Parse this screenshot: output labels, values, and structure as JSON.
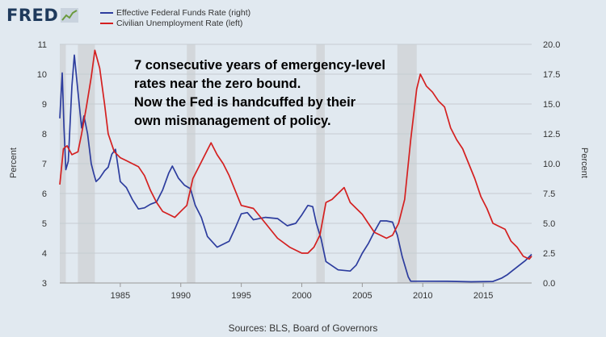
{
  "logo": {
    "text": "FRED",
    "icon": "chart-line-icon"
  },
  "annotation": {
    "lines": [
      "7 consecutive years of emergency-level",
      "rates near the zero bound.",
      "Now the Fed is handcuffed by their",
      "own mismanagement of policy."
    ]
  },
  "source": "Sources: BLS, Board of Governors",
  "chart_data": {
    "type": "line",
    "title": "",
    "xlabel": "",
    "ylabel_left": "Percent",
    "ylabel_right": "Percent",
    "xlim": [
      1980,
      2019
    ],
    "ylim_left": [
      3,
      11
    ],
    "ylim_right": [
      0,
      20
    ],
    "x_ticks": [
      1985,
      1990,
      1995,
      2000,
      2005,
      2010,
      2015
    ],
    "y_ticks_left": [
      "3",
      "4",
      "5",
      "6",
      "7",
      "8",
      "9",
      "10",
      "11"
    ],
    "y_ticks_right": [
      "0.0",
      "2.5",
      "5.0",
      "7.5",
      "10.0",
      "12.5",
      "15.0",
      "17.5",
      "20.0"
    ],
    "grid": true,
    "recessions": [
      [
        1980.0,
        1980.5
      ],
      [
        1981.5,
        1982.9
      ],
      [
        1990.5,
        1991.2
      ],
      [
        2001.2,
        2001.9
      ],
      [
        2007.9,
        2009.5
      ]
    ],
    "colors": {
      "funds": "#2d3d9e",
      "unemployment": "#d42020",
      "recession": "#d3d7db",
      "grid": "#c6ccd2"
    },
    "series": [
      {
        "name": "Effective Federal Funds Rate (right)",
        "axis": "right",
        "color": "#2d3d9e",
        "x": [
          1980.0,
          1980.2,
          1980.35,
          1980.5,
          1980.7,
          1981.0,
          1981.2,
          1981.5,
          1981.8,
          1982.0,
          1982.3,
          1982.6,
          1982.8,
          1983.0,
          1983.3,
          1983.7,
          1984.0,
          1984.3,
          1984.6,
          1985.0,
          1985.5,
          1986.0,
          1986.5,
          1987.0,
          1987.5,
          1988.0,
          1988.5,
          1989.0,
          1989.3,
          1989.8,
          1990.3,
          1990.8,
          1991.2,
          1991.7,
          1992.2,
          1993.0,
          1994.0,
          1994.5,
          1995.0,
          1995.5,
          1996.0,
          1997.0,
          1998.0,
          1998.8,
          1999.5,
          2000.0,
          2000.5,
          2000.9,
          2001.2,
          2001.6,
          2002.0,
          2003.0,
          2004.0,
          2004.5,
          2005.0,
          2005.5,
          2006.0,
          2006.5,
          2007.0,
          2007.5,
          2007.9,
          2008.3,
          2008.8,
          2009.0,
          2010.0,
          2012.0,
          2014.0,
          2015.8,
          2016.5,
          2017.0,
          2017.5,
          2018.0,
          2018.5,
          2019.0
        ],
        "values": [
          13.8,
          17.6,
          13.0,
          9.5,
          10.2,
          16.5,
          19.1,
          16.0,
          13.0,
          14.0,
          12.5,
          10.0,
          9.2,
          8.5,
          8.8,
          9.4,
          9.7,
          10.8,
          11.2,
          8.5,
          8.0,
          7.0,
          6.2,
          6.3,
          6.6,
          6.8,
          7.8,
          9.2,
          9.8,
          8.8,
          8.2,
          7.9,
          6.5,
          5.5,
          3.9,
          3.0,
          3.5,
          4.6,
          5.8,
          5.9,
          5.3,
          5.5,
          5.4,
          4.8,
          5.0,
          5.7,
          6.5,
          6.4,
          5.0,
          3.7,
          1.8,
          1.1,
          1.0,
          1.5,
          2.5,
          3.3,
          4.3,
          5.2,
          5.2,
          5.1,
          4.0,
          2.2,
          0.5,
          0.15,
          0.15,
          0.14,
          0.1,
          0.13,
          0.4,
          0.7,
          1.1,
          1.5,
          1.9,
          2.4
        ]
      },
      {
        "name": "Civilian Unemployment Rate (left)",
        "axis": "left",
        "color": "#d42020",
        "x": [
          1980.0,
          1980.3,
          1980.6,
          1981.0,
          1981.5,
          1981.8,
          1982.2,
          1982.6,
          1982.9,
          1983.3,
          1983.7,
          1984.0,
          1984.5,
          1985.0,
          1985.5,
          1986.0,
          1986.5,
          1987.0,
          1987.5,
          1988.0,
          1988.5,
          1989.0,
          1989.5,
          1990.0,
          1990.5,
          1991.0,
          1991.5,
          1992.0,
          1992.5,
          1993.0,
          1993.5,
          1994.0,
          1994.5,
          1995.0,
          1996.0,
          1997.0,
          1998.0,
          1999.0,
          2000.0,
          2000.5,
          2001.0,
          2001.5,
          2002.0,
          2002.5,
          2003.0,
          2003.5,
          2004.0,
          2004.5,
          2005.0,
          2005.5,
          2006.0,
          2006.5,
          2007.0,
          2007.5,
          2008.0,
          2008.5,
          2009.0,
          2009.5,
          2009.8,
          2010.3,
          2010.8,
          2011.3,
          2011.8,
          2012.3,
          2012.8,
          2013.3,
          2013.8,
          2014.3,
          2014.8,
          2015.3,
          2015.8,
          2016.3,
          2016.8,
          2017.3,
          2017.8,
          2018.3,
          2018.8,
          2019.0
        ],
        "values": [
          6.3,
          7.5,
          7.6,
          7.3,
          7.4,
          8.0,
          8.9,
          9.9,
          10.8,
          10.2,
          9.0,
          8.0,
          7.4,
          7.2,
          7.1,
          7.0,
          6.9,
          6.6,
          6.1,
          5.7,
          5.4,
          5.3,
          5.2,
          5.4,
          5.6,
          6.5,
          6.9,
          7.3,
          7.7,
          7.3,
          7.0,
          6.6,
          6.1,
          5.6,
          5.5,
          5.0,
          4.5,
          4.2,
          4.0,
          4.0,
          4.2,
          4.6,
          5.7,
          5.8,
          6.0,
          6.2,
          5.7,
          5.5,
          5.3,
          5.0,
          4.7,
          4.6,
          4.5,
          4.6,
          5.0,
          5.8,
          7.8,
          9.5,
          10.0,
          9.6,
          9.4,
          9.1,
          8.9,
          8.2,
          7.8,
          7.5,
          7.0,
          6.5,
          5.9,
          5.5,
          5.0,
          4.9,
          4.8,
          4.4,
          4.2,
          3.9,
          3.8,
          3.9
        ]
      }
    ]
  }
}
